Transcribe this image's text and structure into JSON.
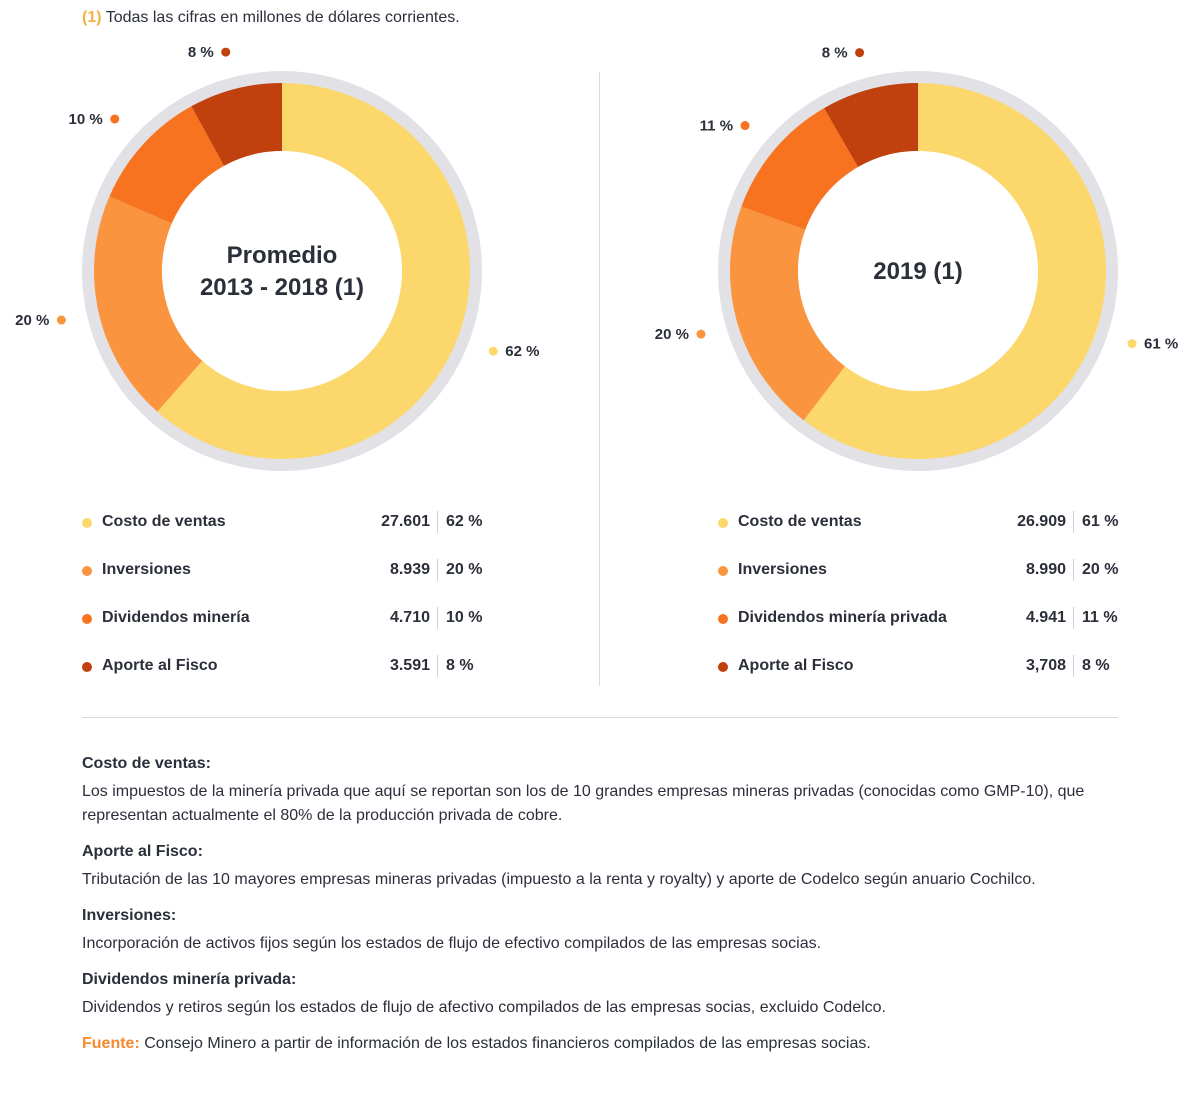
{
  "footnote": {
    "ref": "(1)",
    "text": "Todas las cifras en millones de dólares corrientes."
  },
  "colors": {
    "costo": "#fcd76b",
    "inversiones": "#fa943f",
    "dividendos": "#f7731f",
    "aporte": "#c0400e",
    "ring": "#e1e1e6",
    "accent": "#f7892f"
  },
  "chart_data": [
    {
      "type": "pie",
      "title_lines": [
        "Promedio",
        "2013 - 2018 (1)"
      ],
      "slices": [
        {
          "name": "Costo de ventas",
          "value": 27601,
          "value_label": "27.601",
          "pct": 62,
          "pct_label": "62 %",
          "color": "#fcd76b"
        },
        {
          "name": "Inversiones",
          "value": 8939,
          "value_label": "8.939",
          "pct": 20,
          "pct_label": "20 %",
          "color": "#fa943f"
        },
        {
          "name": "Dividendos minería",
          "value": 4710,
          "value_label": "4.710",
          "pct": 10,
          "pct_label": "10 %",
          "color": "#f7731f"
        },
        {
          "name": "Aporte al Fisco",
          "value": 3591,
          "value_label": "3.591",
          "pct": 8,
          "pct_label": "8 %",
          "color": "#c0400e"
        }
      ]
    },
    {
      "type": "pie",
      "title_lines": [
        "2019 (1)"
      ],
      "slices": [
        {
          "name": "Costo de ventas",
          "value": 26909,
          "value_label": "26.909",
          "pct": 61,
          "pct_label": "61 %",
          "color": "#fcd76b"
        },
        {
          "name": "Inversiones",
          "value": 8990,
          "value_label": "8.990",
          "pct": 20,
          "pct_label": "20 %",
          "color": "#fa943f"
        },
        {
          "name": "Dividendos minería privada",
          "value": 4941,
          "value_label": "4.941",
          "pct": 11,
          "pct_label": "11 %",
          "color": "#f7731f"
        },
        {
          "name": "Aporte al Fisco",
          "value": 3708,
          "value_label": "3,708",
          "pct": 8,
          "pct_label": "8 %",
          "color": "#c0400e"
        }
      ]
    }
  ],
  "notes": [
    {
      "title": "Costo de ventas:",
      "text": "Los impuestos de la minería privada que aquí se reportan son los de 10 grandes empresas mineras privadas (conocidas como GMP-10), que representan actualmente el 80% de la producción privada de cobre."
    },
    {
      "title": "Aporte al Fisco:",
      "text": "Tributación de las 10 mayores empresas mineras privadas (impuesto a la renta y royalty) y aporte de Codelco según anuario Cochilco."
    },
    {
      "title": "Inversiones:",
      "text": "Incorporación de activos fijos según los estados de flujo de efectivo compilados de las empresas socias."
    },
    {
      "title": "Dividendos minería privada:",
      "text": "Dividendos y retiros según los estados de flujo de afectivo compilados de las empresas socias, excluido Codelco."
    }
  ],
  "source": {
    "label": "Fuente:",
    "text": "Consejo Minero a partir de información de los estados financieros compilados de las empresas socias."
  }
}
